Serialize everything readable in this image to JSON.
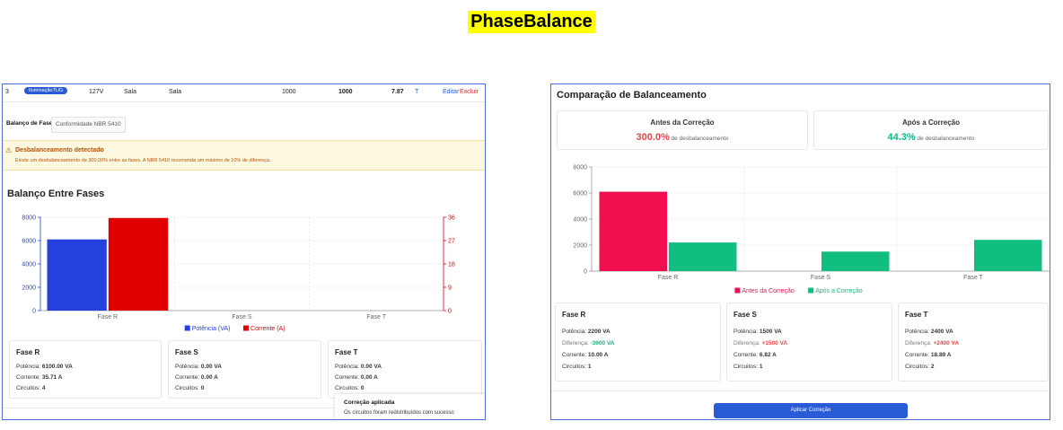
{
  "app_title": "PhaseBalance",
  "left": {
    "row": {
      "num": "3",
      "badge": "IluminaçãoTUG",
      "voltage": "127V",
      "room1": "Sala",
      "room2": "Sala",
      "v1": "1000",
      "v2": "1000",
      "v3": "7.87",
      "phase": "T",
      "edit": "Editar",
      "delete": "Excluir"
    },
    "tabs": [
      "Balanço de Fases",
      "Conformidade NBR 5410"
    ],
    "alert": {
      "title": "Desbalanceamento detectado",
      "text": "Existe um desbalanceamento de 300.00% entre as fases. A NBR 5410 recomenda um máximo de 10% de diferença."
    },
    "section_title": "Balanço Entre Fases",
    "cards": [
      {
        "title": "Fase R",
        "lines": [
          {
            "label": "Potência: ",
            "value": "6100.00 VA"
          },
          {
            "label": "Corrente: ",
            "value": "35.71 A"
          },
          {
            "label": "Circuitos: ",
            "value": "4"
          }
        ]
      },
      {
        "title": "Fase S",
        "lines": [
          {
            "label": "Potência: ",
            "value": "0.00 VA"
          },
          {
            "label": "Corrente: ",
            "value": "0.00 A"
          },
          {
            "label": "Circuitos: ",
            "value": "0"
          }
        ]
      },
      {
        "title": "Fase T",
        "lines": [
          {
            "label": "Potência: ",
            "value": "0.00 VA"
          },
          {
            "label": "Corrente: ",
            "value": "0.00 A"
          },
          {
            "label": "Circuitos: ",
            "value": "0"
          }
        ]
      }
    ],
    "toast": {
      "title": "Correção aplicada",
      "text": "Os circuitos foram redistribuídos com sucesso"
    }
  },
  "right": {
    "title": "Comparação de Balanceamento",
    "before": {
      "label": "Antes da Correção",
      "pct": "300.0%",
      "suffix": " de desbalanceamento"
    },
    "after": {
      "label": "Após a Correção",
      "pct": "44.3%",
      "suffix": " de desbalanceamento"
    },
    "cards": [
      {
        "title": "Fase R",
        "potencia_label": "Potência: ",
        "potencia": "2200 VA",
        "diff_label": "Diferença: ",
        "diff": "-3900 VA",
        "diff_color": "#10b981",
        "corrente_label": "Corrente: ",
        "corrente": "10.00 A",
        "circ_label": "Circuitos: ",
        "circ": "1"
      },
      {
        "title": "Fase S",
        "potencia_label": "Potência: ",
        "potencia": "1500 VA",
        "diff_label": "Diferença: ",
        "diff": "+1500 VA",
        "diff_color": "#ef4444",
        "corrente_label": "Corrente: ",
        "corrente": "6.82 A",
        "circ_label": "Circuitos: ",
        "circ": "1"
      },
      {
        "title": "Fase T",
        "potencia_label": "Potência: ",
        "potencia": "2400 VA",
        "diff_label": "Diferença: ",
        "diff": "+2400 VA",
        "diff_color": "#ef4444",
        "corrente_label": "Corrente: ",
        "corrente": "18.89 A",
        "circ_label": "Circuitos: ",
        "circ": "2"
      }
    ],
    "apply_button": "Aplicar Correção"
  },
  "colors": {
    "accent": "#2a5bd7",
    "red": "#e00000",
    "crimson": "#f0104f",
    "green": "#10b981",
    "highlight": "#ffff00"
  },
  "chart_data": [
    {
      "type": "bar",
      "categories": [
        "Fase R",
        "Fase S",
        "Fase T"
      ],
      "series": [
        {
          "name": "Potência (VA)",
          "values": [
            6100,
            0,
            0
          ],
          "color": "#2640e0",
          "axis": "left"
        },
        {
          "name": "Corrente (A)",
          "values": [
            35.71,
            0,
            0
          ],
          "color": "#e00000",
          "axis": "right"
        }
      ],
      "ylim": [
        0,
        8000
      ],
      "yticks": [
        "0",
        "2000",
        "4000",
        "6000",
        "8000"
      ],
      "y2lim": [
        0,
        36
      ],
      "y2ticks": [
        "0",
        "9",
        "18",
        "27",
        "36"
      ],
      "grid": true,
      "legend": "bottom"
    },
    {
      "type": "bar",
      "categories": [
        "Fase R",
        "Fase S",
        "Fase T"
      ],
      "series": [
        {
          "name": "Antes da Correção",
          "values": [
            6100,
            0,
            0
          ],
          "color": "#f0104f"
        },
        {
          "name": "Após a Correção",
          "values": [
            2200,
            1500,
            2400
          ],
          "color": "#10be7f"
        }
      ],
      "ylim": [
        0,
        8000
      ],
      "yticks": [
        "0",
        "2000",
        "4000",
        "6000",
        "8000"
      ],
      "grid": true,
      "legend": "bottom"
    }
  ]
}
